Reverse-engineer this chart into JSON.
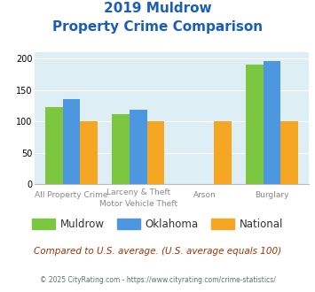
{
  "title_line1": "2019 Muldrow",
  "title_line2": "Property Crime Comparison",
  "cat_labels_top": [
    "",
    "Larceny & Theft",
    "",
    ""
  ],
  "cat_labels_bottom": [
    "All Property Crime",
    "Motor Vehicle Theft",
    "Arson",
    "Burglary"
  ],
  "muldrow": [
    123,
    112,
    0,
    191
  ],
  "oklahoma": [
    135,
    119,
    0,
    197
  ],
  "national": [
    100,
    100,
    100,
    100
  ],
  "muldrow_color": "#7dc63f",
  "oklahoma_color": "#4d97e0",
  "national_color": "#f5a623",
  "bg_color": "#ddeef4",
  "ylim": [
    0,
    210
  ],
  "yticks": [
    0,
    50,
    100,
    150,
    200
  ],
  "footnote": "Compared to U.S. average. (U.S. average equals 100)",
  "copyright": "© 2025 CityRating.com - https://www.cityrating.com/crime-statistics/",
  "title_color": "#1a5eb8",
  "footnote_color": "#b03000",
  "copyright_color": "#607070",
  "label_color": "#888888"
}
